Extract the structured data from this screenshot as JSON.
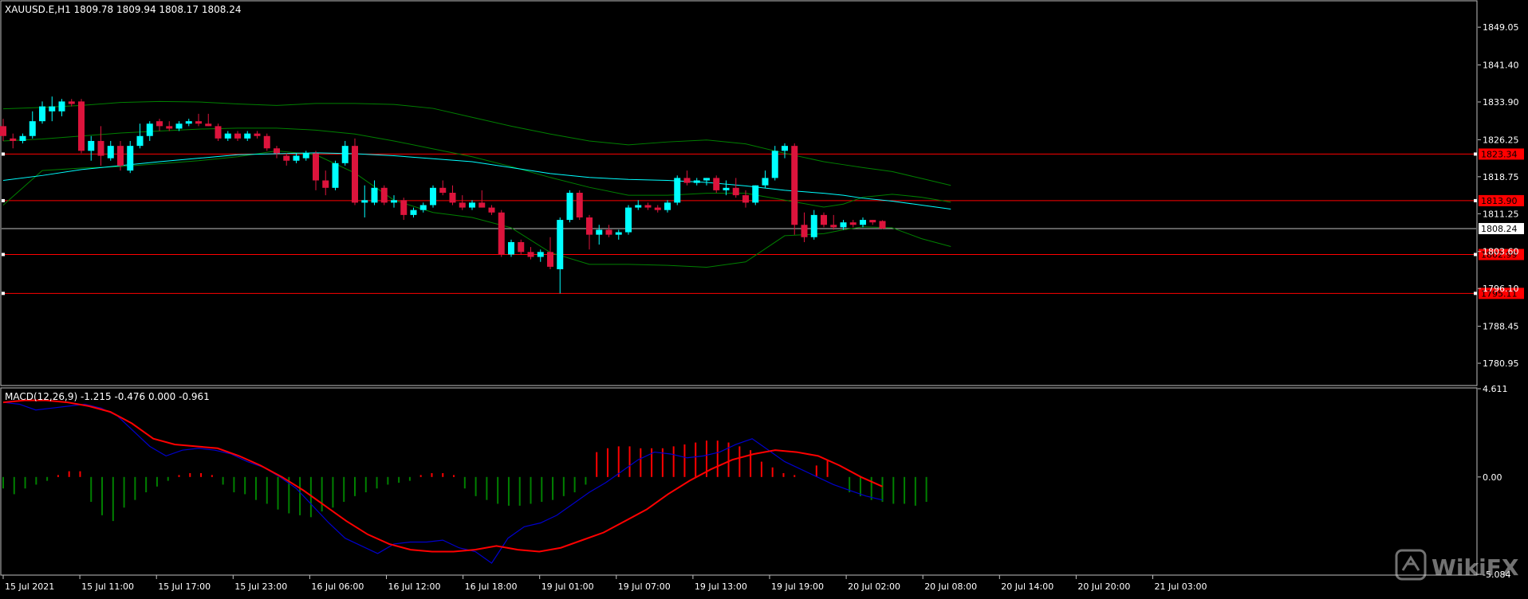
{
  "symbol_header": "XAUUSD.E,H1  1809.78 1809.94 1808.17 1808.24",
  "macd_header": "MACD(12,26,9) -1.215 -0.476 0.000 -0.961",
  "watermark": "WikiFX",
  "colors": {
    "bull": "#00ffff",
    "bear": "#dc143c",
    "bands": "#008000",
    "ma": "#00ffff",
    "hline": "#ff0000",
    "macd_line": "#0000cd",
    "signal_line": "#ff0000",
    "hist_pos": "#ff0000",
    "hist_neg": "#008000",
    "grid_frame": "#c0c0c0",
    "text": "#ffffff"
  },
  "chart_data": [
    {
      "type": "candlestick",
      "title": "XAUUSD.E,H1",
      "ylim": [
        1776.6,
        1854.4
      ],
      "y_ticks": [
        "1849.05",
        "1841.40",
        "1833.90",
        "1826.25",
        "1818.75",
        "1811.25",
        "1803.60",
        "1796.10",
        "1788.45",
        "1780.95"
      ],
      "x_ticks": [
        "15 Jul 2021",
        "15 Jul 11:00",
        "15 Jul 17:00",
        "15 Jul 23:00",
        "16 Jul 06:00",
        "16 Jul 12:00",
        "16 Jul 18:00",
        "19 Jul 01:00",
        "19 Jul 07:00",
        "19 Jul 13:00",
        "19 Jul 19:00",
        "20 Jul 02:00",
        "20 Jul 08:00",
        "20 Jul 14:00",
        "20 Jul 20:00",
        "21 Jul 03:00"
      ],
      "current_price": "1808.24",
      "levels": [
        "1823.34",
        "1813.90",
        "1802.99",
        "1795.11"
      ],
      "candles": [
        [
          1829.0,
          1830.5,
          1826.0,
          1827.0
        ],
        [
          1826.5,
          1827.5,
          1824.5,
          1826.0
        ],
        [
          1826.0,
          1827.5,
          1825.5,
          1827.0
        ],
        [
          1827.0,
          1832.0,
          1826.5,
          1830.0
        ],
        [
          1830.0,
          1834.0,
          1829.5,
          1833.0
        ],
        [
          1832.0,
          1835.0,
          1830.0,
          1833.0
        ],
        [
          1832.0,
          1834.5,
          1831.0,
          1834.0
        ],
        [
          1834.0,
          1834.5,
          1833.0,
          1833.5
        ],
        [
          1834.0,
          1834.5,
          1823.5,
          1824.0
        ],
        [
          1824.0,
          1827.0,
          1822.0,
          1826.0
        ],
        [
          1826.0,
          1829.0,
          1821.0,
          1823.0
        ],
        [
          1822.5,
          1826.0,
          1822.0,
          1825.0
        ],
        [
          1825.0,
          1826.0,
          1820.0,
          1821.0
        ],
        [
          1820.0,
          1826.0,
          1819.5,
          1825.0
        ],
        [
          1825.0,
          1829.5,
          1824.5,
          1827.0
        ],
        [
          1827.0,
          1830.0,
          1826.0,
          1829.5
        ],
        [
          1830.0,
          1830.5,
          1828.0,
          1829.0
        ],
        [
          1829.0,
          1830.0,
          1828.0,
          1828.5
        ],
        [
          1828.5,
          1830.0,
          1828.0,
          1829.5
        ],
        [
          1829.5,
          1830.5,
          1829.0,
          1830.0
        ],
        [
          1830.0,
          1831.5,
          1829.0,
          1829.5
        ],
        [
          1829.5,
          1831.5,
          1829.0,
          1829.0
        ],
        [
          1829.0,
          1829.5,
          1826.0,
          1826.5
        ],
        [
          1826.5,
          1828.0,
          1826.0,
          1827.5
        ],
        [
          1827.5,
          1828.0,
          1826.0,
          1826.5
        ],
        [
          1826.5,
          1828.0,
          1826.0,
          1827.5
        ],
        [
          1827.5,
          1828.0,
          1826.5,
          1827.0
        ],
        [
          1827.0,
          1827.5,
          1824.0,
          1824.5
        ],
        [
          1824.5,
          1825.0,
          1822.5,
          1823.5
        ],
        [
          1823.0,
          1823.5,
          1821.0,
          1822.0
        ],
        [
          1822.0,
          1823.5,
          1821.5,
          1823.0
        ],
        [
          1822.5,
          1824.0,
          1822.0,
          1823.5
        ],
        [
          1823.5,
          1824.0,
          1816.0,
          1818.0
        ],
        [
          1818.0,
          1820.0,
          1815.0,
          1816.5
        ],
        [
          1816.5,
          1822.0,
          1816.0,
          1821.5
        ],
        [
          1821.5,
          1826.0,
          1821.0,
          1825.0
        ],
        [
          1825.0,
          1826.5,
          1813.0,
          1813.5
        ],
        [
          1813.5,
          1817.0,
          1810.5,
          1814.0
        ],
        [
          1813.5,
          1818.0,
          1813.0,
          1816.5
        ],
        [
          1816.5,
          1817.0,
          1813.0,
          1813.5
        ],
        [
          1813.5,
          1815.0,
          1812.5,
          1814.0
        ],
        [
          1814.0,
          1814.5,
          1810.0,
          1811.0
        ],
        [
          1811.0,
          1812.5,
          1810.5,
          1812.0
        ],
        [
          1812.0,
          1813.5,
          1811.5,
          1813.0
        ],
        [
          1813.0,
          1817.0,
          1812.5,
          1816.5
        ],
        [
          1816.5,
          1818.0,
          1815.0,
          1815.5
        ],
        [
          1815.5,
          1817.0,
          1813.0,
          1813.5
        ],
        [
          1813.5,
          1815.0,
          1812.0,
          1812.5
        ],
        [
          1812.5,
          1814.0,
          1812.0,
          1813.5
        ],
        [
          1813.5,
          1816.0,
          1812.5,
          1812.5
        ],
        [
          1812.5,
          1813.0,
          1811.0,
          1811.5
        ],
        [
          1811.5,
          1812.0,
          1802.5,
          1803.0
        ],
        [
          1803.0,
          1806.0,
          1802.5,
          1805.5
        ],
        [
          1805.5,
          1806.0,
          1803.0,
          1803.5
        ],
        [
          1803.5,
          1804.5,
          1802.0,
          1802.5
        ],
        [
          1802.5,
          1804.0,
          1801.5,
          1803.5
        ],
        [
          1803.5,
          1806.5,
          1800.0,
          1800.5
        ],
        [
          1800.0,
          1810.5,
          1795.1,
          1810.0
        ],
        [
          1810.0,
          1816.0,
          1809.5,
          1815.5
        ],
        [
          1815.5,
          1816.0,
          1810.0,
          1810.5
        ],
        [
          1810.5,
          1811.0,
          1804.0,
          1807.0
        ],
        [
          1807.0,
          1809.0,
          1805.0,
          1808.0
        ],
        [
          1808.0,
          1809.0,
          1806.5,
          1807.0
        ],
        [
          1807.0,
          1808.0,
          1806.0,
          1807.5
        ],
        [
          1807.5,
          1813.0,
          1807.0,
          1812.5
        ],
        [
          1812.5,
          1814.0,
          1812.0,
          1813.0
        ],
        [
          1813.0,
          1813.5,
          1812.0,
          1812.5
        ],
        [
          1812.5,
          1813.0,
          1811.5,
          1812.0
        ],
        [
          1812.0,
          1814.0,
          1811.5,
          1813.5
        ],
        [
          1813.5,
          1819.0,
          1813.0,
          1818.5
        ],
        [
          1818.5,
          1820.0,
          1817.0,
          1817.5
        ],
        [
          1817.5,
          1818.5,
          1817.0,
          1818.0
        ],
        [
          1818.0,
          1818.5,
          1817.0,
          1818.5
        ],
        [
          1818.5,
          1819.0,
          1815.5,
          1816.0
        ],
        [
          1816.0,
          1818.0,
          1815.0,
          1816.5
        ],
        [
          1816.5,
          1818.5,
          1814.5,
          1815.0
        ],
        [
          1815.0,
          1816.0,
          1812.5,
          1813.5
        ],
        [
          1813.5,
          1817.0,
          1813.0,
          1817.0
        ],
        [
          1817.0,
          1820.0,
          1816.5,
          1818.5
        ],
        [
          1818.5,
          1825.0,
          1818.0,
          1824.0
        ],
        [
          1824.0,
          1825.5,
          1822.5,
          1825.0
        ],
        [
          1825.0,
          1825.5,
          1807.0,
          1809.0
        ],
        [
          1809.0,
          1811.5,
          1805.5,
          1806.5
        ],
        [
          1806.5,
          1812.0,
          1806.0,
          1811.0
        ],
        [
          1811.0,
          1811.5,
          1808.5,
          1809.0
        ],
        [
          1809.0,
          1811.0,
          1808.0,
          1808.5
        ],
        [
          1808.5,
          1810.0,
          1808.0,
          1809.5
        ],
        [
          1809.5,
          1810.0,
          1808.5,
          1809.0
        ],
        [
          1809.0,
          1810.5,
          1808.5,
          1810.0
        ],
        [
          1810.0,
          1810.0,
          1809.0,
          1809.5
        ],
        [
          1809.78,
          1809.94,
          1808.17,
          1808.24
        ]
      ],
      "bb_upper": [
        1832.5,
        1832.8,
        1833.2,
        1833.8,
        1834.0,
        1833.9,
        1833.5,
        1833.2,
        1833.6,
        1833.6,
        1833.4,
        1832.6,
        1830.8,
        1829.0,
        1827.4,
        1826.0,
        1825.2,
        1825.8,
        1826.2,
        1825.4,
        1823.5,
        1821.8,
        1821.2,
        1820.6,
        1819.8,
        1818.4,
        1817.0
      ],
      "bb_middle": [
        1826.0,
        1826.4,
        1827.0,
        1827.6,
        1828.0,
        1828.4,
        1828.6,
        1828.6,
        1828.2,
        1827.4,
        1826.0,
        1824.4,
        1822.8,
        1820.8,
        1818.6,
        1816.6,
        1815.0,
        1815.0,
        1815.4,
        1815.4,
        1814.0,
        1812.6,
        1813.2,
        1814.6,
        1815.2,
        1814.6,
        1813.6
      ],
      "bb_lower": [
        1813.0,
        1820.0,
        1820.5,
        1820.8,
        1821.4,
        1822.0,
        1822.8,
        1824.0,
        1823.2,
        1819.5,
        1814.0,
        1811.5,
        1810.5,
        1808.4,
        1803.4,
        1801.0,
        1801.0,
        1800.8,
        1800.4,
        1801.5,
        1806.8,
        1807.2,
        1808.0,
        1808.6,
        1808.4,
        1806.2,
        1804.6
      ],
      "ma": [
        1818.0,
        1819.0,
        1820.2,
        1821.0,
        1821.8,
        1822.5,
        1823.2,
        1823.4,
        1823.6,
        1823.4,
        1823.0,
        1822.4,
        1821.8,
        1820.6,
        1819.4,
        1818.6,
        1818.2,
        1818.0,
        1817.6,
        1816.9,
        1816.0,
        1815.4,
        1815.0,
        1814.4,
        1813.8,
        1813.0,
        1812.2
      ],
      "overlay_x_index": [
        0,
        4,
        8,
        12,
        16,
        20,
        24,
        28,
        32,
        36,
        40,
        44,
        48,
        52,
        56,
        60,
        64,
        68,
        72,
        76,
        80,
        84,
        86,
        88,
        91,
        94,
        97
      ]
    },
    {
      "type": "macd",
      "title": "MACD(12,26,9)",
      "ylim": [
        -5.084,
        4.611
      ],
      "y_ticks": [
        "4.611",
        "0.00",
        "-5.084"
      ],
      "histogram": [
        -0.6,
        -0.9,
        -0.6,
        -0.4,
        -0.2,
        0.1,
        0.3,
        0.3,
        -1.3,
        -2.0,
        -2.3,
        -1.6,
        -1.2,
        -0.8,
        -0.5,
        -0.2,
        0.1,
        0.2,
        0.2,
        0.1,
        -0.4,
        -0.8,
        -0.9,
        -1.2,
        -1.4,
        -1.7,
        -1.9,
        -2.0,
        -2.1,
        -1.8,
        -1.6,
        -1.3,
        -1.0,
        -0.8,
        -0.6,
        -0.4,
        -0.3,
        -0.2,
        0.1,
        0.2,
        0.2,
        0.1,
        -0.6,
        -1.0,
        -1.2,
        -1.4,
        -1.5,
        -1.5,
        -1.4,
        -1.3,
        -1.2,
        -1.0,
        -0.8,
        -0.4,
        1.3,
        1.5,
        1.6,
        1.6,
        1.5,
        1.5,
        1.5,
        1.6,
        1.7,
        1.8,
        1.9,
        1.9,
        1.8,
        1.6,
        1.4,
        0.8,
        0.5,
        0.2,
        0.1,
        0.0,
        0.6,
        0.9,
        0.0,
        -0.8,
        -1.0,
        -1.2,
        -1.3,
        -1.4,
        -1.4,
        -1.5,
        -1.3
      ],
      "macd_line": [
        3.9,
        3.8,
        3.5,
        3.6,
        3.7,
        3.8,
        3.6,
        3.2,
        2.4,
        1.6,
        1.1,
        1.4,
        1.5,
        1.4,
        1.2,
        0.8,
        0.5,
        0.0,
        -0.6,
        -1.5,
        -2.4,
        -3.2,
        -3.6,
        -4.0,
        -3.5,
        -3.4,
        -3.4,
        -3.3,
        -3.7,
        -3.9,
        -4.5,
        -3.2,
        -2.6,
        -2.4,
        -2.0,
        -1.4,
        -0.8,
        -0.3,
        0.3,
        0.9,
        1.3,
        1.2,
        1.0,
        1.1,
        1.3,
        1.7,
        2.0,
        1.4,
        0.8,
        0.4,
        0.0,
        -0.4,
        -0.7,
        -1.0,
        -1.2
      ],
      "signal_line": [
        3.9,
        4.0,
        4.0,
        3.9,
        3.7,
        3.4,
        2.8,
        2.0,
        1.7,
        1.6,
        1.5,
        1.1,
        0.6,
        0.0,
        -0.7,
        -1.5,
        -2.3,
        -3.0,
        -3.5,
        -3.8,
        -3.9,
        -3.9,
        -3.8,
        -3.6,
        -3.8,
        -3.9,
        -3.7,
        -3.3,
        -2.9,
        -2.3,
        -1.7,
        -0.9,
        -0.2,
        0.4,
        0.9,
        1.2,
        1.4,
        1.3,
        1.1,
        0.6,
        0.0,
        -0.5
      ]
    }
  ]
}
